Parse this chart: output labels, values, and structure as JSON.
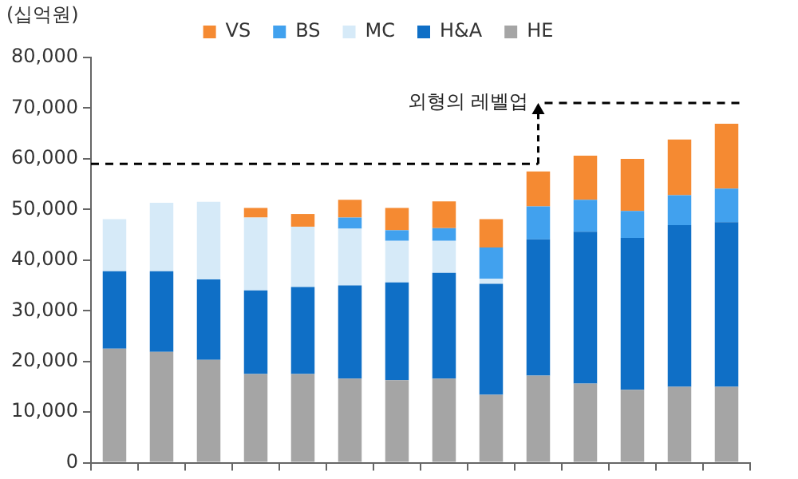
{
  "chart_data": {
    "type": "bar",
    "stacked": true,
    "ylabel": "(십억원)",
    "categories": [
      null,
      null,
      null,
      null,
      null,
      null,
      null,
      null,
      null,
      null,
      null,
      null,
      null,
      null
    ],
    "series": [
      {
        "name": "HE",
        "color": "#a5a5a5",
        "values": [
          22500,
          21900,
          20300,
          17500,
          17500,
          16600,
          16300,
          16600,
          13400,
          17200,
          15600,
          14400,
          15000,
          15000
        ]
      },
      {
        "name": "H&A",
        "color": "#0f6fc6",
        "values": [
          15300,
          15900,
          15900,
          16500,
          17200,
          18400,
          19300,
          20900,
          21900,
          26900,
          30000,
          30000,
          31900,
          32500
        ]
      },
      {
        "name": "MC",
        "color": "#d6eaf8",
        "values": [
          10300,
          13500,
          15300,
          14400,
          11900,
          11200,
          8200,
          6300,
          1000,
          null,
          null,
          null,
          null,
          null
        ]
      },
      {
        "name": "BS",
        "color": "#41a1ee",
        "values": [
          null,
          null,
          null,
          null,
          null,
          2200,
          2100,
          2500,
          6200,
          6500,
          6300,
          5300,
          5900,
          6600
        ]
      },
      {
        "name": "VS",
        "color": "#f58a32",
        "values": [
          null,
          null,
          null,
          1900,
          2500,
          3500,
          4400,
          5300,
          5600,
          6900,
          8700,
          10300,
          11000,
          12800
        ]
      }
    ],
    "ylim": [
      0,
      80000
    ],
    "yticks": [
      {
        "value": 0,
        "label": "0"
      },
      {
        "value": 10000,
        "label": "10,000"
      },
      {
        "value": 20000,
        "label": "20,000"
      },
      {
        "value": 30000,
        "label": "30,000"
      },
      {
        "value": 40000,
        "label": "40,000"
      },
      {
        "value": 50000,
        "label": "50,000"
      },
      {
        "value": 60000,
        "label": "60,000"
      },
      {
        "value": 70000,
        "label": "70,000"
      },
      {
        "value": 80000,
        "label": "80,000"
      }
    ],
    "grid": false,
    "legend": "top",
    "tick_labels": "y",
    "ref_lines": [
      {
        "axis": "y",
        "value": 59000,
        "color": "#000000",
        "line_style": "dashed"
      },
      {
        "axis": "y",
        "value": 71000,
        "label": "외형의 레벨업",
        "color": "#000000",
        "line_style": "dashed"
      }
    ]
  }
}
